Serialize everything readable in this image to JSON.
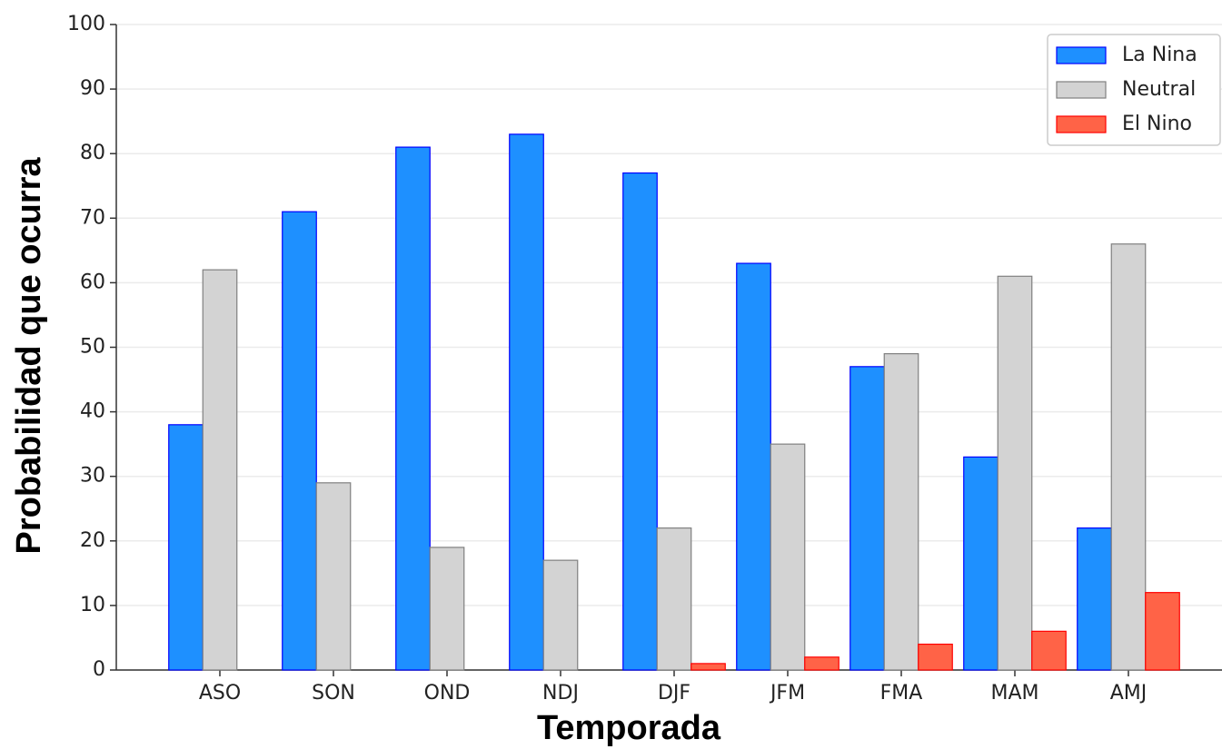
{
  "chart_data": {
    "type": "bar",
    "x_label": "Temporada",
    "y_label": "Probabilidad que ocurra",
    "categories": [
      "ASO",
      "SON",
      "OND",
      "NDJ",
      "DJF",
      "JFM",
      "FMA",
      "MAM",
      "AMJ"
    ],
    "series": [
      {
        "name": "La Nina",
        "color": "#1e90ff",
        "edgecolor": "#0000ff",
        "values": [
          38,
          71,
          81,
          83,
          77,
          63,
          47,
          33,
          22
        ]
      },
      {
        "name": "Neutral",
        "color": "#d3d3d3",
        "edgecolor": "#808080",
        "values": [
          62,
          29,
          19,
          17,
          22,
          35,
          49,
          61,
          66
        ]
      },
      {
        "name": "El Nino",
        "color": "#ff6347",
        "edgecolor": "#ff0000",
        "values": [
          0,
          0,
          0,
          0,
          1,
          2,
          4,
          6,
          12
        ]
      }
    ],
    "ylim": [
      0,
      100
    ],
    "yticks": [
      0,
      10,
      20,
      30,
      40,
      50,
      60,
      70,
      80,
      90,
      100
    ],
    "grid": true,
    "legend": "upper right"
  }
}
